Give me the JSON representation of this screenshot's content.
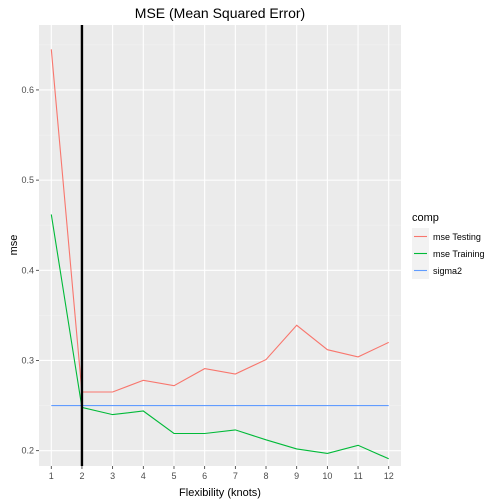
{
  "chart_data": {
    "type": "line",
    "title": "MSE (Mean Squared Error)",
    "xlabel": "Flexibility (knots)",
    "ylabel": "mse",
    "x": [
      1,
      2,
      3,
      4,
      5,
      6,
      7,
      8,
      9,
      10,
      11,
      12
    ],
    "xlim": [
      0.6,
      12.4
    ],
    "ylim": [
      0.183,
      0.672
    ],
    "xticks": [
      1,
      2,
      3,
      4,
      5,
      6,
      7,
      8,
      9,
      10,
      11,
      12
    ],
    "yticks": [
      0.2,
      0.3,
      0.4,
      0.5,
      0.6
    ],
    "vline": {
      "x": 2,
      "color": "#000000"
    },
    "grid": true,
    "legend": {
      "title": "comp",
      "position": "right"
    },
    "series": [
      {
        "name": "mse Testing",
        "color": "#F8766D",
        "values": [
          0.645,
          0.265,
          0.265,
          0.278,
          0.272,
          0.291,
          0.285,
          0.301,
          0.339,
          0.312,
          0.304,
          0.32
        ]
      },
      {
        "name": "mse Training",
        "color": "#00BA38",
        "values": [
          0.462,
          0.248,
          0.24,
          0.244,
          0.219,
          0.219,
          0.223,
          0.212,
          0.202,
          0.197,
          0.206,
          0.191
        ]
      },
      {
        "name": "sigma2",
        "color": "#619CFF",
        "values": [
          0.25,
          0.25,
          0.25,
          0.25,
          0.25,
          0.25,
          0.25,
          0.25,
          0.25,
          0.25,
          0.25,
          0.25
        ]
      }
    ]
  }
}
